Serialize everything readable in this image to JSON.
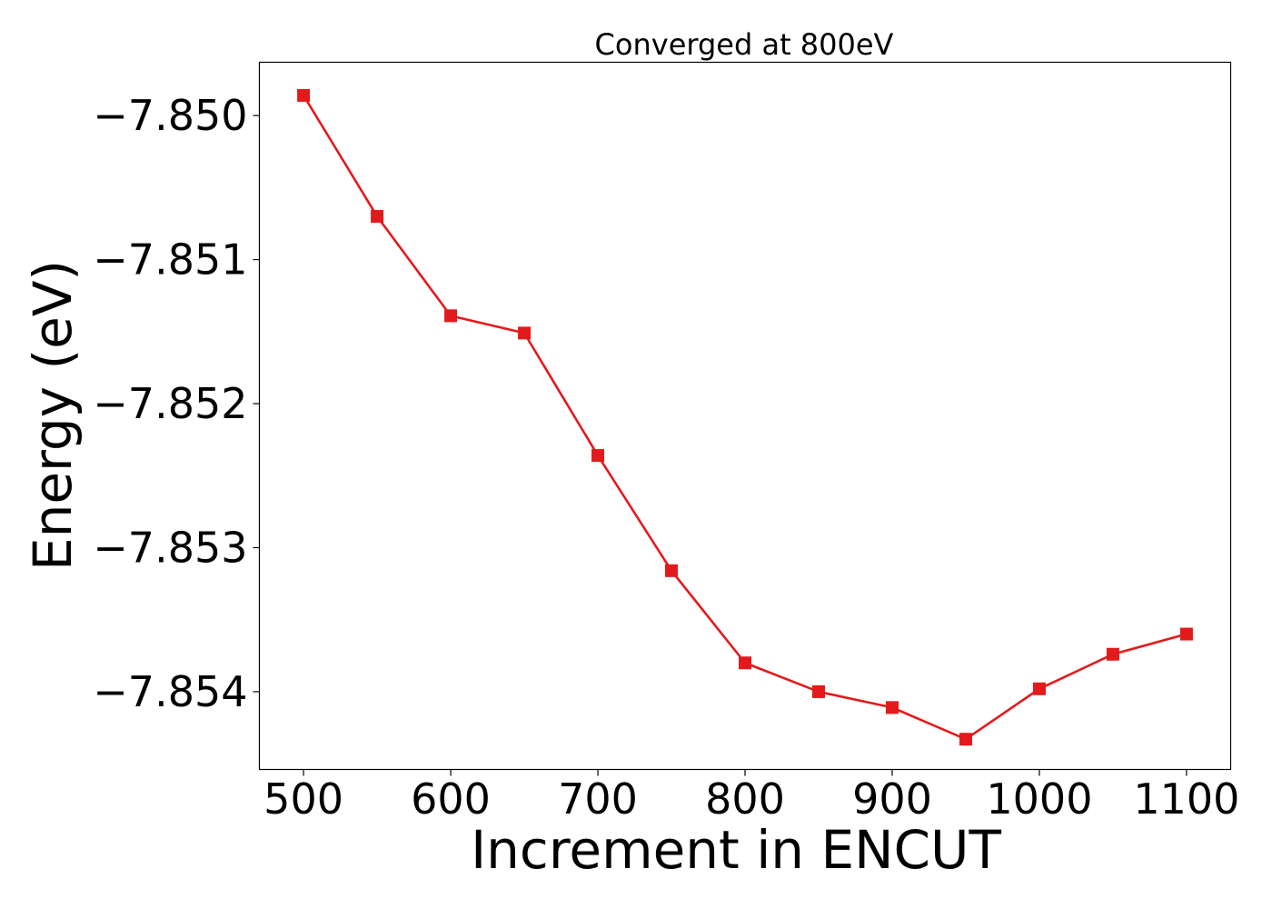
{
  "chart_data": {
    "type": "line",
    "title": "Converged at 800eV",
    "xlabel": "Increment in ENCUT",
    "ylabel": "Energy (eV)",
    "xlim": [
      470,
      1130
    ],
    "ylim": [
      -7.85454,
      -7.84963
    ],
    "x_ticks": [
      500,
      600,
      700,
      800,
      900,
      1000,
      1100
    ],
    "x_tick_labels": [
      "500",
      "600",
      "700",
      "800",
      "900",
      "1000",
      "1100"
    ],
    "y_ticks": [
      -7.85,
      -7.851,
      -7.852,
      -7.853,
      -7.854
    ],
    "y_tick_labels": [
      "−7.850",
      "−7.851",
      "−7.852",
      "−7.853",
      "−7.854"
    ],
    "grid": false,
    "series": [
      {
        "color": "#e31a1c",
        "marker": "square",
        "x": [
          500,
          550,
          600,
          650,
          700,
          750,
          800,
          850,
          900,
          950,
          1000,
          1050,
          1100
        ],
        "y": [
          -7.84986,
          -7.8507,
          -7.85139,
          -7.85151,
          -7.85236,
          -7.85316,
          -7.8538,
          -7.854,
          -7.85411,
          -7.85433,
          -7.85398,
          -7.85374,
          -7.8536
        ]
      }
    ]
  }
}
